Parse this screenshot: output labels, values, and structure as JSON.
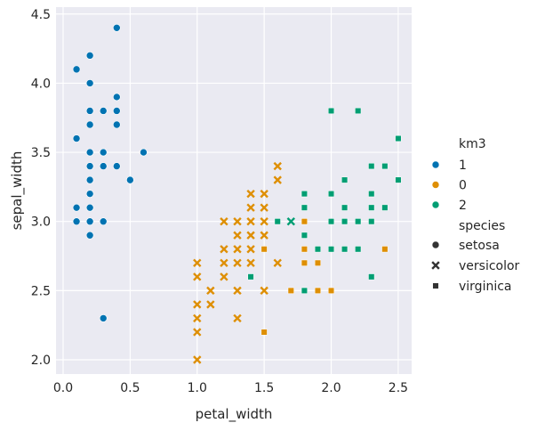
{
  "chart_data": {
    "type": "scatter",
    "xlabel": "petal_width",
    "ylabel": "sepal_width",
    "xlim": [
      -0.053,
      2.6
    ],
    "ylim": [
      1.897,
      4.55
    ],
    "xticks": [
      "0.0",
      "0.5",
      "1.0",
      "1.5",
      "2.0",
      "2.5"
    ],
    "yticks": [
      "2.0",
      "2.5",
      "3.0",
      "3.5",
      "4.0",
      "4.5"
    ],
    "grid": true,
    "legend_position": "right",
    "legend": {
      "hue_title": "km3",
      "hue_entries": [
        {
          "label": "1",
          "color": "#0173b2"
        },
        {
          "label": "0",
          "color": "#de8f05"
        },
        {
          "label": "2",
          "color": "#029e73"
        }
      ],
      "style_title": "species",
      "style_entries": [
        {
          "label": "setosa",
          "marker": "circle"
        },
        {
          "label": "versicolor",
          "marker": "x"
        },
        {
          "label": "virginica",
          "marker": "square"
        }
      ]
    },
    "series": [
      {
        "km3": "1",
        "species": "setosa",
        "color": "#0173b2",
        "marker": "circle",
        "points": [
          [
            0.1,
            4.1
          ],
          [
            0.1,
            3.6
          ],
          [
            0.1,
            3.1
          ],
          [
            0.1,
            3.0
          ],
          [
            0.2,
            4.2
          ],
          [
            0.2,
            4.0
          ],
          [
            0.2,
            3.8
          ],
          [
            0.2,
            3.7
          ],
          [
            0.2,
            3.5
          ],
          [
            0.2,
            3.4
          ],
          [
            0.2,
            3.3
          ],
          [
            0.2,
            3.2
          ],
          [
            0.2,
            3.1
          ],
          [
            0.2,
            3.0
          ],
          [
            0.2,
            2.9
          ],
          [
            0.3,
            3.8
          ],
          [
            0.3,
            3.5
          ],
          [
            0.3,
            3.4
          ],
          [
            0.3,
            3.0
          ],
          [
            0.3,
            2.3
          ],
          [
            0.4,
            4.4
          ],
          [
            0.4,
            3.9
          ],
          [
            0.4,
            3.8
          ],
          [
            0.4,
            3.7
          ],
          [
            0.4,
            3.4
          ],
          [
            0.5,
            3.3
          ],
          [
            0.6,
            3.5
          ]
        ]
      },
      {
        "km3": "0",
        "species": "versicolor",
        "color": "#de8f05",
        "marker": "x",
        "points": [
          [
            1.6,
            3.4
          ],
          [
            1.6,
            3.3
          ],
          [
            1.4,
            3.2
          ],
          [
            1.5,
            3.2
          ],
          [
            1.4,
            3.1
          ],
          [
            1.5,
            3.1
          ],
          [
            1.2,
            3.0
          ],
          [
            1.3,
            3.0
          ],
          [
            1.4,
            3.0
          ],
          [
            1.5,
            3.0
          ],
          [
            1.3,
            2.9
          ],
          [
            1.4,
            2.9
          ],
          [
            1.5,
            2.9
          ],
          [
            1.2,
            2.8
          ],
          [
            1.3,
            2.8
          ],
          [
            1.4,
            2.8
          ],
          [
            1.0,
            2.7
          ],
          [
            1.2,
            2.7
          ],
          [
            1.3,
            2.7
          ],
          [
            1.4,
            2.7
          ],
          [
            1.6,
            2.7
          ],
          [
            1.0,
            2.6
          ],
          [
            1.2,
            2.6
          ],
          [
            1.1,
            2.5
          ],
          [
            1.3,
            2.5
          ],
          [
            1.5,
            2.5
          ],
          [
            1.0,
            2.4
          ],
          [
            1.1,
            2.4
          ],
          [
            1.0,
            2.3
          ],
          [
            1.3,
            2.3
          ],
          [
            1.0,
            2.2
          ],
          [
            1.0,
            2.0
          ]
        ]
      },
      {
        "km3": "2",
        "species": "versicolor",
        "color": "#029e73",
        "marker": "x",
        "points": [
          [
            1.7,
            3.0
          ]
        ]
      },
      {
        "km3": "0",
        "species": "virginica",
        "color": "#de8f05",
        "marker": "square",
        "points": [
          [
            1.8,
            3.2
          ],
          [
            1.8,
            3.0
          ],
          [
            1.5,
            2.8
          ],
          [
            1.8,
            2.8
          ],
          [
            2.4,
            2.8
          ],
          [
            1.8,
            2.7
          ],
          [
            1.9,
            2.7
          ],
          [
            1.7,
            2.5
          ],
          [
            1.9,
            2.5
          ],
          [
            2.0,
            2.5
          ],
          [
            1.5,
            2.2
          ]
        ]
      },
      {
        "km3": "2",
        "species": "virginica",
        "color": "#029e73",
        "marker": "square",
        "points": [
          [
            2.0,
            3.8
          ],
          [
            2.2,
            3.8
          ],
          [
            2.5,
            3.6
          ],
          [
            2.3,
            3.4
          ],
          [
            2.4,
            3.4
          ],
          [
            2.1,
            3.3
          ],
          [
            2.5,
            3.3
          ],
          [
            1.8,
            3.2
          ],
          [
            2.0,
            3.2
          ],
          [
            2.3,
            3.2
          ],
          [
            1.8,
            3.1
          ],
          [
            2.1,
            3.1
          ],
          [
            2.3,
            3.1
          ],
          [
            2.4,
            3.1
          ],
          [
            1.6,
            3.0
          ],
          [
            2.0,
            3.0
          ],
          [
            2.1,
            3.0
          ],
          [
            2.2,
            3.0
          ],
          [
            2.3,
            3.0
          ],
          [
            1.8,
            2.9
          ],
          [
            1.9,
            2.8
          ],
          [
            2.0,
            2.8
          ],
          [
            2.1,
            2.8
          ],
          [
            2.2,
            2.8
          ],
          [
            1.4,
            2.6
          ],
          [
            2.3,
            2.6
          ],
          [
            1.8,
            2.5
          ]
        ]
      }
    ]
  }
}
